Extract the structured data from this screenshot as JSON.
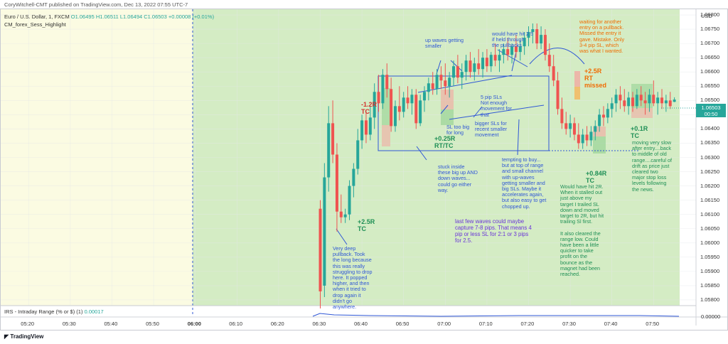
{
  "header": {
    "publisher": "CoryWitchell-CMT published on TradingView.com, Dec 13, 2022 07:55 UTC-7",
    "symbol": "Euro / U.S. Dollar, 1, FXCM",
    "ohlc": "O1.06495 H1.06511 L1.06494 C1.06503 +0.00008 (+0.01%)",
    "indicator": "CM_forex_Sess_Highlight"
  },
  "price_axis": {
    "currency": "USD",
    "last_price": "1.06503",
    "countdown": "00:50",
    "ticks": [
      "1.06800",
      "1.06750",
      "1.06700",
      "1.06650",
      "1.06600",
      "1.06550",
      "1.06500",
      "1.06450",
      "1.06400",
      "1.06350",
      "1.06300",
      "1.06250",
      "1.06200",
      "1.06150",
      "1.06100",
      "1.06050",
      "1.06000",
      "1.05950",
      "1.05900",
      "1.05850",
      "1.05800"
    ]
  },
  "indicator_pane": {
    "label": "IRS - Intraday Range (% or $) (1)",
    "value": "0.00017",
    "axis_value": "0.00000"
  },
  "time_axis": {
    "ticks": [
      "05:20",
      "05:30",
      "05:40",
      "05:50",
      "06:00",
      "06:10",
      "06:20",
      "06:30",
      "06:40",
      "06:50",
      "07:00",
      "07:10",
      "07:20",
      "07:30",
      "07:40",
      "07:50"
    ]
  },
  "footer": {
    "brand": "TradingView"
  },
  "annotations": {
    "a_very_deep": "Very deep\npullback. Took\nthe long because\nthis was really\nstruggling to drop\nhere. It popped\nhigher, and then\nwhen it tried to\ndrop again it\ndidn't go\nanywhere.",
    "a_up_waves": "up waves getting\nsmaller",
    "a_would_have_hit": "would have hit 2.5\nif held through\nthe pullbacks",
    "a_waiting": "waiting for another\nentry on a pullback.\nMissed the entry it\ngave. Mistake. Only\n3-4 pip SL, which\nwas what I wanted.",
    "a_5pip": "5 pip SLs\nNot enough\nmovement for\nthat",
    "a_sl_too_big": "SL too big\nfor long",
    "a_bigger_sls": "bigger SLs for\nrecent smaller\nmovement",
    "a_stuck": "stuck inside\nthese big up AND\ndown waves...\ncould go either\nway.",
    "a_tempting": "tempting to buy...\nbut at top of range\nand small channel\nwith up-waves\ngetting smaller and\nbig SLs. Maybe it\naccelerates again,\nbut also easy to get\nchopped up.",
    "a_last_few": "last few waves could maybe\ncapture 7-8 pips. That means 4\npip or less SL for 2:1 or 3 pips\nfor 2.5.",
    "a_would_have_2r": "Would have hit 2R.\nWhen it stalled out\njust above my\ntarget I trailed SL\ndown and moved\ntarget to 2R, but hit\ntrailing Sl first.\n\nIt also cleared the\nrange low. Could\nhave been a little\nquicker to take\nprofit on the\nbounce as the\nmagnet had been\nreached.",
    "a_moving_slow": "moving very slow\nafter entry....back\nto middle of old\nrange....careful of\ndrift as price just\ncleared two\nmajor stop loss\nlevels following\nthe news."
  },
  "results": {
    "r_m12": "-1.2R\nTC",
    "r_25": "+2.5R\nTC",
    "r_025": "+0.25R\nRT/TC",
    "r_25rt": "+2.5R\nRT\nmissed",
    "r_084": "+0.84R\nTC",
    "r_01": "+0.1R\nTC"
  },
  "colors": {
    "up": "#26a69a",
    "down": "#ef5350",
    "session_green": "#d4ecc4",
    "session_yellow": "#fbfbe2",
    "note_blue": "#2f57d6",
    "note_orange": "#ef6c00",
    "note_green": "#1e8f55",
    "note_purple": "#6a35d8",
    "result_red": "#d32f2f"
  },
  "chart_data": {
    "type": "candlestick",
    "symbol": "Euro / U.S. Dollar, 1, FXCM",
    "interval": "1 minute",
    "ylim": [
      1.0578,
      1.0682
    ],
    "x_time_range": [
      "05:15",
      "07:57"
    ],
    "last_close": 1.06503,
    "candles": [
      {
        "t": "06:30",
        "o": 1.0612,
        "h": 1.0615,
        "l": 1.0577,
        "c": 1.0583
      },
      {
        "t": "06:31",
        "o": 1.0585,
        "h": 1.0628,
        "l": 1.0581,
        "c": 1.0623
      },
      {
        "t": "06:32",
        "o": 1.0623,
        "h": 1.0648,
        "l": 1.0618,
        "c": 1.0642
      },
      {
        "t": "06:33",
        "o": 1.0642,
        "h": 1.065,
        "l": 1.0628,
        "c": 1.0631
      },
      {
        "t": "06:34",
        "o": 1.0631,
        "h": 1.0635,
        "l": 1.0604,
        "c": 1.0611
      },
      {
        "t": "06:35",
        "o": 1.0611,
        "h": 1.0617,
        "l": 1.0607,
        "c": 1.0609
      },
      {
        "t": "06:36",
        "o": 1.0609,
        "h": 1.0612,
        "l": 1.0607,
        "c": 1.061
      },
      {
        "t": "06:37",
        "o": 1.061,
        "h": 1.0622,
        "l": 1.0608,
        "c": 1.062
      },
      {
        "t": "06:38",
        "o": 1.062,
        "h": 1.0628,
        "l": 1.0616,
        "c": 1.0626
      },
      {
        "t": "06:39",
        "o": 1.0626,
        "h": 1.064,
        "l": 1.0624,
        "c": 1.0636
      },
      {
        "t": "06:40",
        "o": 1.0636,
        "h": 1.0645,
        "l": 1.0633,
        "c": 1.0643
      },
      {
        "t": "06:41",
        "o": 1.0643,
        "h": 1.0646,
        "l": 1.0635,
        "c": 1.0638
      },
      {
        "t": "06:42",
        "o": 1.0638,
        "h": 1.0648,
        "l": 1.0636,
        "c": 1.0644
      },
      {
        "t": "06:43",
        "o": 1.0644,
        "h": 1.0656,
        "l": 1.064,
        "c": 1.0653
      },
      {
        "t": "06:44",
        "o": 1.0653,
        "h": 1.0659,
        "l": 1.0646,
        "c": 1.0649
      },
      {
        "t": "06:45",
        "o": 1.0649,
        "h": 1.0661,
        "l": 1.0647,
        "c": 1.0659
      },
      {
        "t": "06:46",
        "o": 1.0659,
        "h": 1.0663,
        "l": 1.0651,
        "c": 1.0654
      },
      {
        "t": "06:47",
        "o": 1.0654,
        "h": 1.0658,
        "l": 1.0639,
        "c": 1.0641
      },
      {
        "t": "06:48",
        "o": 1.0641,
        "h": 1.065,
        "l": 1.0639,
        "c": 1.0648
      },
      {
        "t": "06:49",
        "o": 1.0648,
        "h": 1.0655,
        "l": 1.0643,
        "c": 1.0646
      },
      {
        "t": "06:50",
        "o": 1.0646,
        "h": 1.0653,
        "l": 1.0644,
        "c": 1.0651
      },
      {
        "t": "06:51",
        "o": 1.0651,
        "h": 1.0655,
        "l": 1.0647,
        "c": 1.0649
      },
      {
        "t": "06:52",
        "o": 1.0649,
        "h": 1.0654,
        "l": 1.0645,
        "c": 1.0652
      },
      {
        "t": "06:53",
        "o": 1.0652,
        "h": 1.0654,
        "l": 1.064,
        "c": 1.0642
      },
      {
        "t": "06:54",
        "o": 1.0642,
        "h": 1.0652,
        "l": 1.0641,
        "c": 1.065
      },
      {
        "t": "06:55",
        "o": 1.065,
        "h": 1.0655,
        "l": 1.0646,
        "c": 1.0653
      },
      {
        "t": "06:56",
        "o": 1.0653,
        "h": 1.0658,
        "l": 1.065,
        "c": 1.0656
      },
      {
        "t": "06:57",
        "o": 1.0656,
        "h": 1.066,
        "l": 1.0652,
        "c": 1.0654
      },
      {
        "t": "06:58",
        "o": 1.0654,
        "h": 1.0661,
        "l": 1.0652,
        "c": 1.0659
      },
      {
        "t": "06:59",
        "o": 1.0659,
        "h": 1.0662,
        "l": 1.0654,
        "c": 1.0657
      },
      {
        "t": "07:00",
        "o": 1.0657,
        "h": 1.0663,
        "l": 1.0652,
        "c": 1.0655
      },
      {
        "t": "07:01",
        "o": 1.0655,
        "h": 1.066,
        "l": 1.0651,
        "c": 1.0658
      },
      {
        "t": "07:02",
        "o": 1.0658,
        "h": 1.0664,
        "l": 1.0655,
        "c": 1.0662
      },
      {
        "t": "07:03",
        "o": 1.0662,
        "h": 1.0666,
        "l": 1.0656,
        "c": 1.0658
      },
      {
        "t": "07:04",
        "o": 1.0658,
        "h": 1.0663,
        "l": 1.0654,
        "c": 1.066
      },
      {
        "t": "07:05",
        "o": 1.066,
        "h": 1.0666,
        "l": 1.0657,
        "c": 1.0664
      },
      {
        "t": "07:06",
        "o": 1.0664,
        "h": 1.0667,
        "l": 1.0658,
        "c": 1.066
      },
      {
        "t": "07:07",
        "o": 1.066,
        "h": 1.0665,
        "l": 1.0657,
        "c": 1.0663
      },
      {
        "t": "07:08",
        "o": 1.0663,
        "h": 1.0668,
        "l": 1.0659,
        "c": 1.0661
      },
      {
        "t": "07:09",
        "o": 1.0661,
        "h": 1.0667,
        "l": 1.0658,
        "c": 1.0665
      },
      {
        "t": "07:10",
        "o": 1.0665,
        "h": 1.0668,
        "l": 1.066,
        "c": 1.0662
      },
      {
        "t": "07:11",
        "o": 1.0662,
        "h": 1.0667,
        "l": 1.066,
        "c": 1.0666
      },
      {
        "t": "07:12",
        "o": 1.0666,
        "h": 1.067,
        "l": 1.0662,
        "c": 1.0664
      },
      {
        "t": "07:13",
        "o": 1.0664,
        "h": 1.0668,
        "l": 1.066,
        "c": 1.0666
      },
      {
        "t": "07:14",
        "o": 1.0666,
        "h": 1.067,
        "l": 1.0663,
        "c": 1.0668
      },
      {
        "t": "07:15",
        "o": 1.0668,
        "h": 1.0672,
        "l": 1.0664,
        "c": 1.0666
      },
      {
        "t": "07:16",
        "o": 1.0666,
        "h": 1.067,
        "l": 1.0663,
        "c": 1.0669
      },
      {
        "t": "07:17",
        "o": 1.0669,
        "h": 1.0673,
        "l": 1.0665,
        "c": 1.0667
      },
      {
        "t": "07:18",
        "o": 1.0667,
        "h": 1.0671,
        "l": 1.0664,
        "c": 1.0669
      },
      {
        "t": "07:19",
        "o": 1.0669,
        "h": 1.0674,
        "l": 1.0666,
        "c": 1.0672
      },
      {
        "t": "07:20",
        "o": 1.0672,
        "h": 1.0676,
        "l": 1.0669,
        "c": 1.0674
      },
      {
        "t": "07:21",
        "o": 1.0674,
        "h": 1.0677,
        "l": 1.067,
        "c": 1.0675
      },
      {
        "t": "07:22",
        "o": 1.0675,
        "h": 1.0677,
        "l": 1.0668,
        "c": 1.067
      },
      {
        "t": "07:23",
        "o": 1.067,
        "h": 1.0676,
        "l": 1.0668,
        "c": 1.0673
      },
      {
        "t": "07:24",
        "o": 1.0673,
        "h": 1.0675,
        "l": 1.0664,
        "c": 1.0666
      },
      {
        "t": "07:25",
        "o": 1.0666,
        "h": 1.067,
        "l": 1.066,
        "c": 1.0662
      },
      {
        "t": "07:26",
        "o": 1.0662,
        "h": 1.0666,
        "l": 1.0655,
        "c": 1.0657
      },
      {
        "t": "07:27",
        "o": 1.0657,
        "h": 1.066,
        "l": 1.0645,
        "c": 1.0647
      },
      {
        "t": "07:28",
        "o": 1.0647,
        "h": 1.0651,
        "l": 1.064,
        "c": 1.0642
      },
      {
        "t": "07:29",
        "o": 1.0642,
        "h": 1.0646,
        "l": 1.0638,
        "c": 1.064
      },
      {
        "t": "07:30",
        "o": 1.064,
        "h": 1.0645,
        "l": 1.0637,
        "c": 1.0642
      },
      {
        "t": "07:31",
        "o": 1.0642,
        "h": 1.0644,
        "l": 1.0636,
        "c": 1.0638
      },
      {
        "t": "07:32",
        "o": 1.0638,
        "h": 1.0642,
        "l": 1.0633,
        "c": 1.0635
      },
      {
        "t": "07:33",
        "o": 1.0635,
        "h": 1.064,
        "l": 1.0633,
        "c": 1.0638
      },
      {
        "t": "07:34",
        "o": 1.0638,
        "h": 1.0641,
        "l": 1.0634,
        "c": 1.0636
      },
      {
        "t": "07:35",
        "o": 1.0636,
        "h": 1.0641,
        "l": 1.0634,
        "c": 1.0639
      },
      {
        "t": "07:36",
        "o": 1.0639,
        "h": 1.0643,
        "l": 1.0636,
        "c": 1.0641
      },
      {
        "t": "07:37",
        "o": 1.0641,
        "h": 1.0647,
        "l": 1.0639,
        "c": 1.0645
      },
      {
        "t": "07:38",
        "o": 1.0645,
        "h": 1.0648,
        "l": 1.0641,
        "c": 1.0644
      },
      {
        "t": "07:39",
        "o": 1.0644,
        "h": 1.0649,
        "l": 1.0642,
        "c": 1.0647
      },
      {
        "t": "07:40",
        "o": 1.0647,
        "h": 1.0651,
        "l": 1.0644,
        "c": 1.0649
      },
      {
        "t": "07:41",
        "o": 1.0649,
        "h": 1.0654,
        "l": 1.0646,
        "c": 1.0652
      },
      {
        "t": "07:42",
        "o": 1.0652,
        "h": 1.0655,
        "l": 1.0647,
        "c": 1.065
      },
      {
        "t": "07:43",
        "o": 1.065,
        "h": 1.0654,
        "l": 1.0646,
        "c": 1.0648
      },
      {
        "t": "07:44",
        "o": 1.0648,
        "h": 1.0653,
        "l": 1.0645,
        "c": 1.0651
      },
      {
        "t": "07:45",
        "o": 1.0651,
        "h": 1.0653,
        "l": 1.0646,
        "c": 1.0648
      },
      {
        "t": "07:46",
        "o": 1.0648,
        "h": 1.0654,
        "l": 1.0647,
        "c": 1.0652
      },
      {
        "t": "07:47",
        "o": 1.0652,
        "h": 1.0655,
        "l": 1.0648,
        "c": 1.065
      },
      {
        "t": "07:48",
        "o": 1.065,
        "h": 1.0653,
        "l": 1.0645,
        "c": 1.0649
      },
      {
        "t": "07:49",
        "o": 1.0649,
        "h": 1.0654,
        "l": 1.0646,
        "c": 1.0652
      },
      {
        "t": "07:50",
        "o": 1.0652,
        "h": 1.0657,
        "l": 1.0648,
        "c": 1.0649
      },
      {
        "t": "07:51",
        "o": 1.0649,
        "h": 1.0653,
        "l": 1.0645,
        "c": 1.0651
      },
      {
        "t": "07:52",
        "o": 1.0651,
        "h": 1.0654,
        "l": 1.0647,
        "c": 1.0649
      },
      {
        "t": "07:53",
        "o": 1.0649,
        "h": 1.0652,
        "l": 1.0646,
        "c": 1.065
      },
      {
        "t": "07:54",
        "o": 1.065,
        "h": 1.0653,
        "l": 1.0647,
        "c": 1.0648
      },
      {
        "t": "07:55",
        "o": 1.06495,
        "h": 1.06511,
        "l": 1.06494,
        "c": 1.06503
      }
    ]
  }
}
